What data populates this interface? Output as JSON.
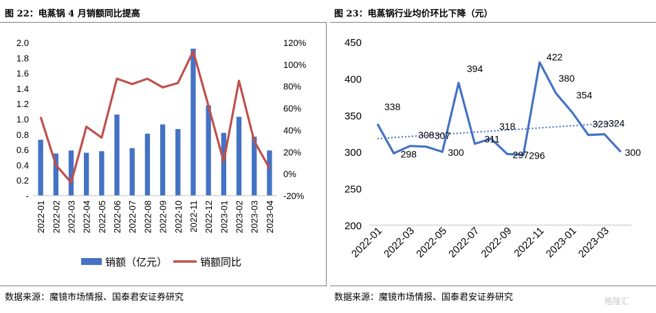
{
  "left_panel": {
    "title": "图 22：电蒸锅 4 月销额同比提高",
    "source": "数据来源：魔镜市场情报、国泰君安证券研究"
  },
  "right_panel": {
    "title": "图 23：电蒸锅行业均价环比下降（元）",
    "source": "数据来源：魔镜市场情报、国泰君安证券研究"
  },
  "watermark": "格隆汇",
  "chart_data": [
    {
      "type": "bar",
      "title": "图 22：电蒸锅 4 月销额同比提高",
      "categories": [
        "2022-01",
        "2022-02",
        "2022-03",
        "2022-04",
        "2022-05",
        "2022-06",
        "2022-07",
        "2022-08",
        "2022-09",
        "2022-10",
        "2022-11",
        "2022-12",
        "2023-01",
        "2023-02",
        "2023-03",
        "2023-04"
      ],
      "series": [
        {
          "name": "销额（亿元）",
          "type": "bar",
          "axis": "left",
          "color": "#4472c4",
          "values": [
            0.73,
            0.55,
            0.59,
            0.56,
            0.58,
            1.06,
            0.62,
            0.81,
            0.93,
            0.87,
            1.92,
            1.18,
            0.82,
            1.03,
            0.77,
            0.59
          ]
        },
        {
          "name": "销额同比",
          "type": "line",
          "axis": "right",
          "color": "#c0504d",
          "values": [
            0.52,
            0.08,
            -0.08,
            0.43,
            0.33,
            0.87,
            0.82,
            0.87,
            0.79,
            0.83,
            1.12,
            0.62,
            0.11,
            0.85,
            0.3,
            0.05
          ]
        }
      ],
      "y_left": {
        "ylim": [
          0,
          2.0
        ],
        "ticks": [
          "-",
          "0.2",
          "0.4",
          "0.6",
          "0.8",
          "1.0",
          "1.2",
          "1.4",
          "1.6",
          "1.8",
          "2.0"
        ]
      },
      "y_right": {
        "ylim": [
          -0.2,
          1.2
        ],
        "ticks": [
          "-20%",
          "0%",
          "20%",
          "40%",
          "60%",
          "80%",
          "100%",
          "120%"
        ]
      },
      "legend": [
        "销额（亿元）",
        "销额同比"
      ],
      "legend_position": "bottom",
      "grid": false
    },
    {
      "type": "line",
      "title": "图 23：电蒸锅行业均价环比下降（元）",
      "categories": [
        "2022-01",
        "2022-02",
        "2022-03",
        "2022-04",
        "2022-05",
        "2022-06",
        "2022-07",
        "2022-08",
        "2022-09",
        "2022-10",
        "2022-11",
        "2022-12",
        "2023-01",
        "2023-02",
        "2023-03",
        "2023-04"
      ],
      "x_tick_labels": [
        "2022-01",
        "2022-03",
        "2022-05",
        "2022-07",
        "2022-09",
        "2022-11",
        "2023-01",
        "2023-03"
      ],
      "series": [
        {
          "type": "line",
          "color": "#4472c4",
          "values": [
            338,
            298,
            308,
            307,
            300,
            394,
            311,
            318,
            297,
            296,
            422,
            380,
            354,
            323,
            324,
            300
          ],
          "data_labels": [
            "338",
            "298",
            "308",
            "307",
            "300",
            "394",
            "311",
            "318",
            "297",
            "296",
            "422",
            "380",
            "354",
            "323",
            "324",
            "300"
          ]
        },
        {
          "type": "trendline",
          "style": "dotted",
          "color": "#4472c4",
          "start": 318,
          "end": 340
        }
      ],
      "ylim": [
        200,
        450
      ],
      "y_ticks": [
        "200",
        "250",
        "300",
        "350",
        "400",
        "450"
      ],
      "grid": false,
      "legend": null
    }
  ]
}
